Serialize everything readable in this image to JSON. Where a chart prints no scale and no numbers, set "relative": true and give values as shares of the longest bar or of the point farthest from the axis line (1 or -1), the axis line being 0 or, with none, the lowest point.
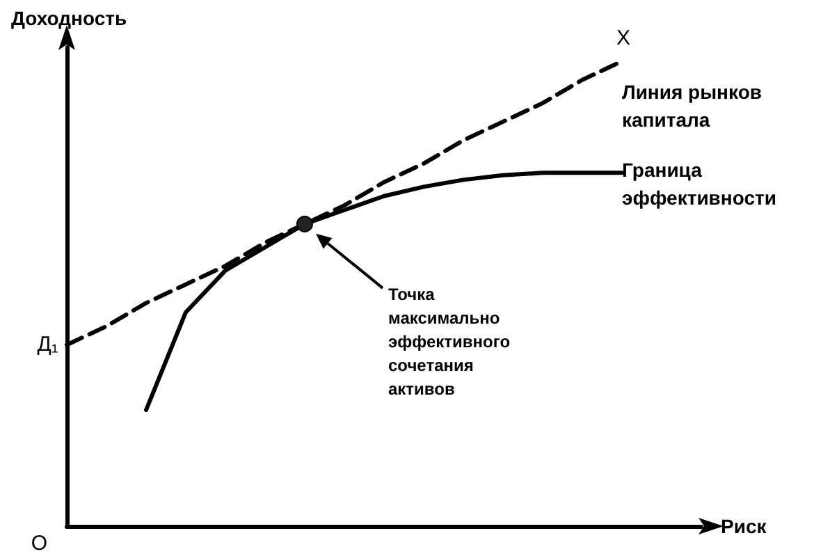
{
  "chart_data": {
    "type": "line",
    "relative": true,
    "xlabel": "Риск",
    "ylabel": "Доходность",
    "grid": false,
    "legend": false,
    "marker": "none",
    "categories": [
      null,
      null,
      null,
      null,
      null,
      null,
      null,
      null,
      null,
      null,
      null,
      null,
      null,
      null,
      null,
      null,
      null
    ],
    "series": [
      {
        "name": "Линия рынков капитала",
        "color": "#000000",
        "line_style": "dashed",
        "values": [
          0.39,
          0.43,
          0.48,
          0.52,
          0.56,
          0.61,
          0.65,
          0.69,
          0.74,
          0.78,
          0.83,
          0.87,
          0.91,
          0.96,
          1.0,
          null,
          null
        ]
      },
      {
        "name": "Граница эффективности",
        "color": "#000000",
        "line_style": "solid",
        "values": [
          null,
          null,
          0.25,
          0.46,
          0.55,
          0.6,
          0.65,
          0.68,
          0.71,
          0.73,
          0.745,
          0.755,
          0.76,
          0.76,
          0.76,
          null,
          null
        ]
      }
    ],
    "annotations": [
      "О",
      "Д₁",
      "X",
      "Точка максимально эффективного сочетания активов"
    ]
  }
}
